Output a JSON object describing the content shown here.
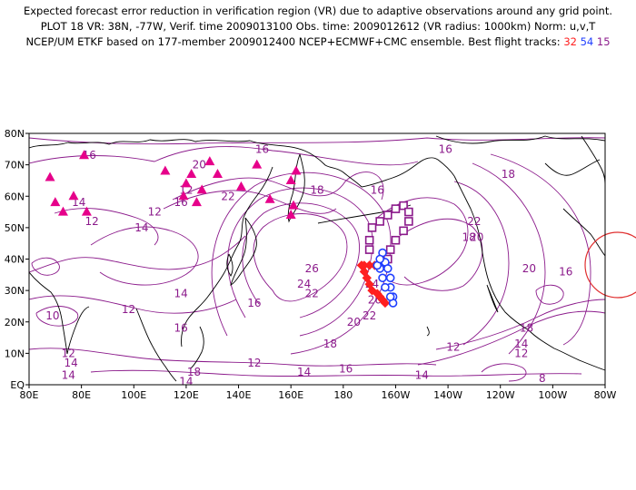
{
  "header": {
    "line1": "Expected forecast error reduction in verification region (VR) due to adaptive observations around any grid point.",
    "line2": "PLOT 18 VR: 38N, -77W, Verif. time 2009013100 Obs. time: 2009012612 (VR radius: 1000km) Norm: u,v,T",
    "line3_prefix": "NCEP/UM ETKF based on 177-member 2009012400 NCEP+ECMWF+CMC ensemble. Best flight tracks:",
    "track_red": "32",
    "track_blue": "54",
    "track_purple": "15"
  },
  "axes": {
    "lon_labels": [
      "80E",
      "80E",
      "100E",
      "120E",
      "140E",
      "160E",
      "180",
      "160W",
      "140W",
      "120W",
      "100W",
      "80W"
    ],
    "lat_labels": [
      "EQ",
      "10N",
      "20N",
      "30N",
      "40N",
      "50N",
      "60N",
      "70N",
      "80N"
    ]
  },
  "contour_labels": [
    {
      "t": "16",
      "lon": 83,
      "lat": 73
    },
    {
      "t": "16",
      "lon": 149,
      "lat": 75
    },
    {
      "t": "16",
      "lon": 219,
      "lat": 75
    },
    {
      "t": "18",
      "lon": 243,
      "lat": 67
    },
    {
      "t": "20",
      "lon": 125,
      "lat": 70
    },
    {
      "t": "16",
      "lon": 193,
      "lat": 62
    },
    {
      "t": "18",
      "lon": 170,
      "lat": 62
    },
    {
      "t": "16",
      "lon": 118,
      "lat": 58
    },
    {
      "t": "22",
      "lon": 136,
      "lat": 60
    },
    {
      "t": "12",
      "lon": 120,
      "lat": 62
    },
    {
      "t": "14",
      "lon": 79,
      "lat": 58
    },
    {
      "t": "12",
      "lon": 84,
      "lat": 52
    },
    {
      "t": "14",
      "lon": 103,
      "lat": 50
    },
    {
      "t": "12",
      "lon": 108,
      "lat": 55
    },
    {
      "t": "22",
      "lon": 230,
      "lat": 52
    },
    {
      "t": "18",
      "lon": 228,
      "lat": 47
    },
    {
      "t": "20",
      "lon": 231,
      "lat": 47
    },
    {
      "t": "26",
      "lon": 168,
      "lat": 37
    },
    {
      "t": "24",
      "lon": 165,
      "lat": 32
    },
    {
      "t": "22",
      "lon": 168,
      "lat": 29
    },
    {
      "t": "20",
      "lon": 251,
      "lat": 37
    },
    {
      "t": "16",
      "lon": 265,
      "lat": 36
    },
    {
      "t": "24",
      "lon": 191,
      "lat": 32
    },
    {
      "t": "26",
      "lon": 192,
      "lat": 27
    },
    {
      "t": "14",
      "lon": 118,
      "lat": 29
    },
    {
      "t": "16",
      "lon": 146,
      "lat": 26
    },
    {
      "t": "22",
      "lon": 190,
      "lat": 22
    },
    {
      "t": "20",
      "lon": 184,
      "lat": 20
    },
    {
      "t": "18",
      "lon": 250,
      "lat": 18
    },
    {
      "t": "12",
      "lon": 98,
      "lat": 24
    },
    {
      "t": "10",
      "lon": 69,
      "lat": 22
    },
    {
      "t": "16",
      "lon": 118,
      "lat": 18
    },
    {
      "t": "10",
      "lon": 283,
      "lat": 22
    },
    {
      "t": "18",
      "lon": 175,
      "lat": 13
    },
    {
      "t": "14",
      "lon": 248,
      "lat": 13
    },
    {
      "t": "12",
      "lon": 222,
      "lat": 12
    },
    {
      "t": "12",
      "lon": 248,
      "lat": 10
    },
    {
      "t": "12",
      "lon": 75,
      "lat": 10
    },
    {
      "t": "14",
      "lon": 76,
      "lat": 7
    },
    {
      "t": "14",
      "lon": 75,
      "lat": 3
    },
    {
      "t": "12",
      "lon": 146,
      "lat": 7
    },
    {
      "t": "18",
      "lon": 123,
      "lat": 4
    },
    {
      "t": "14",
      "lon": 165,
      "lat": 4
    },
    {
      "t": "16",
      "lon": 181,
      "lat": 5
    },
    {
      "t": "14",
      "lon": 210,
      "lat": 3
    },
    {
      "t": "8",
      "lon": 256,
      "lat": 2
    },
    {
      "t": "14",
      "lon": 120,
      "lat": 1
    }
  ],
  "triangles": [
    [
      68,
      66
    ],
    [
      70,
      58
    ],
    [
      73,
      55
    ],
    [
      77,
      60
    ],
    [
      81,
      73
    ],
    [
      82,
      55
    ],
    [
      112,
      68
    ],
    [
      119,
      60
    ],
    [
      120,
      64
    ],
    [
      122,
      67
    ],
    [
      124,
      58
    ],
    [
      126,
      62
    ],
    [
      129,
      71
    ],
    [
      132,
      67
    ],
    [
      141,
      63
    ],
    [
      147,
      70
    ],
    [
      152,
      59
    ],
    [
      160,
      65
    ],
    [
      162,
      68
    ],
    [
      160,
      54
    ],
    [
      161,
      57
    ]
  ],
  "tracks": {
    "purple": [
      [
        190,
        46
      ],
      [
        190,
        43
      ],
      [
        191,
        50
      ],
      [
        194,
        52
      ],
      [
        197,
        54
      ],
      [
        200,
        56
      ],
      [
        203,
        57
      ],
      [
        205,
        55
      ],
      [
        205,
        52
      ],
      [
        203,
        49
      ],
      [
        200,
        46
      ],
      [
        198,
        43
      ],
      [
        197,
        40
      ]
    ],
    "blue": [
      [
        195,
        42
      ],
      [
        196,
        39
      ],
      [
        197,
        37
      ],
      [
        198,
        34
      ],
      [
        198,
        31
      ],
      [
        199,
        28
      ],
      [
        199,
        26
      ],
      [
        198,
        28
      ],
      [
        196,
        31
      ],
      [
        195,
        34
      ],
      [
        194,
        37
      ],
      [
        193,
        38
      ],
      [
        194,
        40
      ]
    ],
    "red": [
      [
        187,
        38
      ],
      [
        188,
        36
      ],
      [
        189,
        34
      ],
      [
        190,
        32
      ],
      [
        191,
        30
      ],
      [
        193,
        29
      ],
      [
        194,
        28
      ],
      [
        195,
        27
      ],
      [
        196,
        26
      ],
      [
        196,
        38
      ],
      [
        194,
        38
      ],
      [
        192,
        38
      ],
      [
        190,
        38
      ],
      [
        188,
        38
      ],
      [
        187,
        38
      ]
    ]
  },
  "colors": {
    "contour": "#8b1a8b",
    "coast": "#000000",
    "triangle": "#e6008a",
    "track_purple": "#8b1a8b",
    "track_blue": "#1f3fff",
    "track_red": "#ff2020",
    "verif_circle": "#e03030"
  }
}
